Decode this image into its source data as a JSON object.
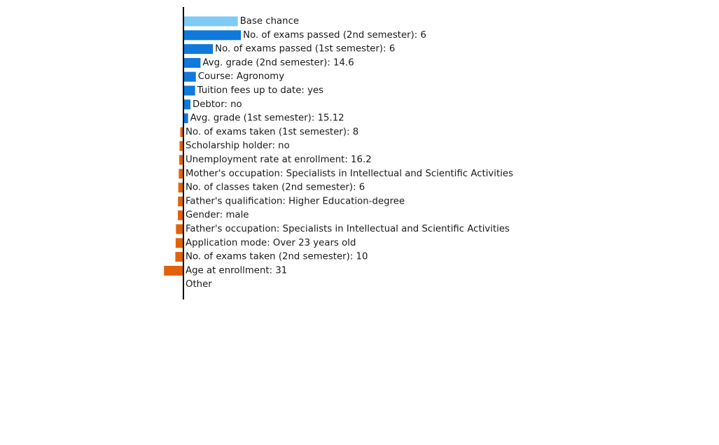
{
  "chart_data": {
    "type": "bar",
    "orientation": "horizontal",
    "grid": false,
    "legend": "none",
    "colors": {
      "base": "#7fcaf7",
      "positive": "#0f79dc",
      "negative": "#e2620b",
      "axis": "#000000"
    },
    "categories": [
      "Base chance",
      "No. of exams passed (2nd semester): 6",
      "No. of exams passed (1st semester): 6",
      "Avg. grade (2nd semester): 14.6",
      "Course: Agronomy",
      "Tuition fees up to date: yes",
      "Debtor: no",
      "Avg. grade (1st semester): 15.12",
      "No. of exams taken (1st semester): 8",
      "Scholarship holder: no",
      "Unemployment rate at enrollment: 16.2",
      "Mother's occupation: Specialists in Intellectual and Scientific Activities",
      "No. of classes taken (2nd semester): 6",
      "Father's qualification: Higher Education-degree",
      "Gender: male",
      "Father's occupation: Specialists in Intellectual and Scientific Activities",
      "Application mode: Over 23 years old",
      "No. of exams taken (2nd semester): 10",
      "Age at enrollment: 31",
      "Other"
    ],
    "values": [
      0.35,
      0.37,
      0.19,
      0.11,
      0.08,
      0.075,
      0.045,
      0.03,
      -0.02,
      -0.025,
      -0.027,
      -0.03,
      -0.033,
      -0.035,
      -0.036,
      -0.048,
      -0.05,
      -0.052,
      -0.125,
      0
    ],
    "kinds": [
      "base",
      "pos",
      "pos",
      "pos",
      "pos",
      "pos",
      "pos",
      "pos",
      "neg",
      "neg",
      "neg",
      "neg",
      "neg",
      "neg",
      "neg",
      "neg",
      "neg",
      "neg",
      "neg",
      "none"
    ]
  }
}
